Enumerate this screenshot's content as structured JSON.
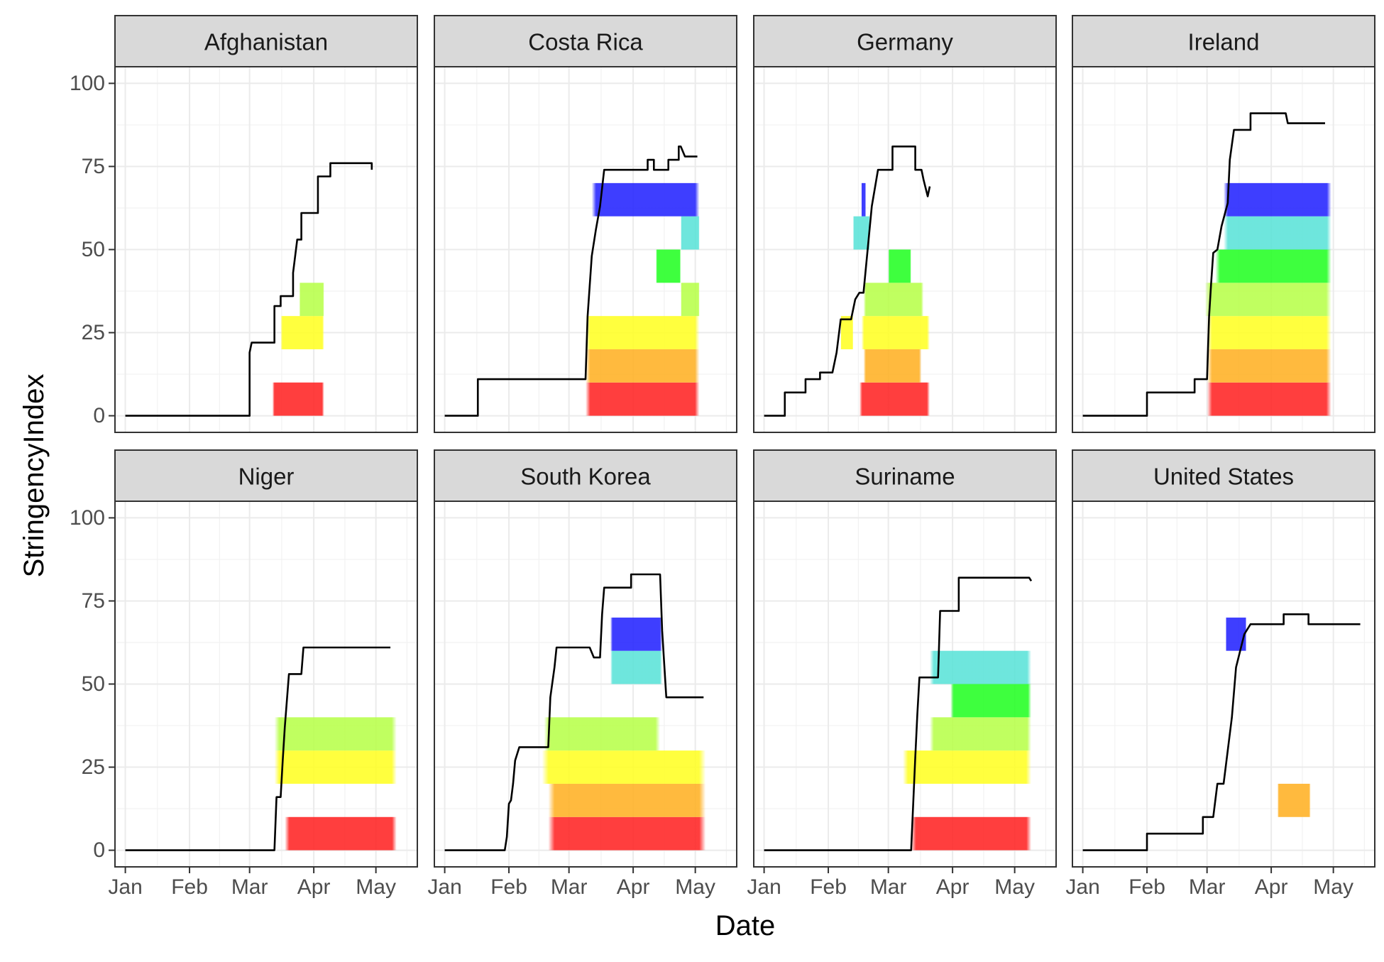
{
  "chart_data": {
    "type": "line",
    "layout": "facet-grid",
    "x_label": "Date",
    "y_label": "StringencyIndex",
    "x_ticks": [
      "Jan",
      "Feb",
      "Mar",
      "Apr",
      "May"
    ],
    "x_tick_dates": [
      "2020-01-01",
      "2020-02-01",
      "2020-03-01",
      "2020-04-01",
      "2020-05-01"
    ],
    "x_range": [
      "2019-12-27",
      "2020-05-21"
    ],
    "y_ticks": [
      0,
      25,
      50,
      75,
      100
    ],
    "y_range": [
      -5,
      105
    ],
    "grid": true,
    "band_height": 10,
    "band_colors": [
      "#ff2424",
      "#ffb124",
      "#ffff24",
      "#b8ff4a",
      "#24ff24",
      "#5ae3d8",
      "#2424ff"
    ],
    "panels": [
      {
        "country": "Afghanistan",
        "line": [
          [
            "2020-01-01",
            0
          ],
          [
            "2020-02-01",
            0
          ],
          [
            "2020-03-01",
            0
          ],
          [
            "2020-03-01",
            19
          ],
          [
            "2020-03-02",
            22
          ],
          [
            "2020-03-13",
            22
          ],
          [
            "2020-03-13",
            33
          ],
          [
            "2020-03-16",
            33
          ],
          [
            "2020-03-16",
            36
          ],
          [
            "2020-03-22",
            36
          ],
          [
            "2020-03-22",
            43
          ],
          [
            "2020-03-24",
            53
          ],
          [
            "2020-03-26",
            53
          ],
          [
            "2020-03-26",
            61
          ],
          [
            "2020-04-03",
            61
          ],
          [
            "2020-04-03",
            72
          ],
          [
            "2020-04-09",
            72
          ],
          [
            "2020-04-09",
            76
          ],
          [
            "2020-04-29",
            76
          ],
          [
            "2020-04-29",
            74
          ]
        ],
        "bands": [
          {
            "level": 0,
            "start": "2020-03-12",
            "end": "2020-04-06"
          },
          {
            "level": 2,
            "start": "2020-03-16",
            "end": "2020-04-06"
          },
          {
            "level": 3,
            "start": "2020-03-25",
            "end": "2020-04-06"
          }
        ]
      },
      {
        "country": "Costa Rica",
        "line": [
          [
            "2020-01-01",
            0
          ],
          [
            "2020-01-17",
            0
          ],
          [
            "2020-01-17",
            11
          ],
          [
            "2020-03-09",
            11
          ],
          [
            "2020-03-10",
            30
          ],
          [
            "2020-03-12",
            48
          ],
          [
            "2020-03-14",
            56
          ],
          [
            "2020-03-16",
            63
          ],
          [
            "2020-03-18",
            74
          ],
          [
            "2020-04-08",
            74
          ],
          [
            "2020-04-08",
            77
          ],
          [
            "2020-04-11",
            77
          ],
          [
            "2020-04-11",
            74
          ],
          [
            "2020-04-18",
            74
          ],
          [
            "2020-04-18",
            77
          ],
          [
            "2020-04-23",
            77
          ],
          [
            "2020-04-23",
            81
          ],
          [
            "2020-04-24",
            81
          ],
          [
            "2020-04-26",
            78
          ],
          [
            "2020-05-02",
            78
          ]
        ],
        "bands": [
          {
            "level": 0,
            "start": "2020-03-09",
            "end": "2020-05-03"
          },
          {
            "level": 1,
            "start": "2020-03-09",
            "end": "2020-05-03"
          },
          {
            "level": 2,
            "start": "2020-03-09",
            "end": "2020-05-03"
          },
          {
            "level": 3,
            "start": "2020-04-24",
            "end": "2020-05-03"
          },
          {
            "level": 4,
            "start": "2020-04-12",
            "end": "2020-04-24"
          },
          {
            "level": 5,
            "start": "2020-04-24",
            "end": "2020-05-03"
          },
          {
            "level": 6,
            "start": "2020-03-12",
            "end": "2020-05-03"
          }
        ]
      },
      {
        "country": "Germany",
        "line": [
          [
            "2020-01-01",
            0
          ],
          [
            "2020-01-11",
            0
          ],
          [
            "2020-01-11",
            7
          ],
          [
            "2020-01-21",
            7
          ],
          [
            "2020-01-21",
            11
          ],
          [
            "2020-01-28",
            11
          ],
          [
            "2020-01-28",
            13
          ],
          [
            "2020-02-03",
            13
          ],
          [
            "2020-02-05",
            19
          ],
          [
            "2020-02-07",
            29
          ],
          [
            "2020-02-12",
            29
          ],
          [
            "2020-02-14",
            35
          ],
          [
            "2020-02-16",
            37
          ],
          [
            "2020-02-18",
            37
          ],
          [
            "2020-02-20",
            50
          ],
          [
            "2020-02-22",
            63
          ],
          [
            "2020-02-25",
            74
          ],
          [
            "2020-03-03",
            74
          ],
          [
            "2020-03-03",
            81
          ],
          [
            "2020-03-14",
            81
          ],
          [
            "2020-03-14",
            74
          ],
          [
            "2020-03-17",
            74
          ],
          [
            "2020-03-18",
            71
          ],
          [
            "2020-03-20",
            66
          ],
          [
            "2020-03-21",
            69
          ]
        ],
        "bands": [
          {
            "level": 0,
            "start": "2020-02-16",
            "end": "2020-03-21"
          },
          {
            "level": 1,
            "start": "2020-02-18",
            "end": "2020-03-17"
          },
          {
            "level": 2,
            "start": "2020-02-07",
            "end": "2020-02-13"
          },
          {
            "level": 2,
            "start": "2020-02-17",
            "end": "2020-03-21"
          },
          {
            "level": 3,
            "start": "2020-02-18",
            "end": "2020-03-18"
          },
          {
            "level": 4,
            "start": "2020-03-01",
            "end": "2020-03-12"
          },
          {
            "level": 5,
            "start": "2020-02-13",
            "end": "2020-02-21"
          },
          {
            "level": 6,
            "start": "2020-02-17",
            "end": "2020-02-19"
          }
        ]
      },
      {
        "country": "Ireland",
        "line": [
          [
            "2020-01-01",
            0
          ],
          [
            "2020-02-01",
            0
          ],
          [
            "2020-02-01",
            7
          ],
          [
            "2020-02-24",
            7
          ],
          [
            "2020-02-24",
            11
          ],
          [
            "2020-03-01",
            11
          ],
          [
            "2020-03-02",
            30
          ],
          [
            "2020-03-03",
            40
          ],
          [
            "2020-03-04",
            49
          ],
          [
            "2020-03-06",
            50
          ],
          [
            "2020-03-08",
            57
          ],
          [
            "2020-03-11",
            64
          ],
          [
            "2020-03-12",
            77
          ],
          [
            "2020-03-14",
            86
          ],
          [
            "2020-03-22",
            86
          ],
          [
            "2020-03-22",
            91
          ],
          [
            "2020-04-08",
            91
          ],
          [
            "2020-04-09",
            88
          ],
          [
            "2020-04-27",
            88
          ]
        ],
        "bands": [
          {
            "level": 0,
            "start": "2020-03-01",
            "end": "2020-04-30"
          },
          {
            "level": 1,
            "start": "2020-03-01",
            "end": "2020-04-30"
          },
          {
            "level": 2,
            "start": "2020-03-01",
            "end": "2020-04-30"
          },
          {
            "level": 3,
            "start": "2020-02-29",
            "end": "2020-04-30"
          },
          {
            "level": 4,
            "start": "2020-03-05",
            "end": "2020-04-30"
          },
          {
            "level": 5,
            "start": "2020-03-09",
            "end": "2020-04-30"
          },
          {
            "level": 6,
            "start": "2020-03-09",
            "end": "2020-04-30"
          }
        ]
      },
      {
        "country": "Niger",
        "line": [
          [
            "2020-01-01",
            0
          ],
          [
            "2020-02-01",
            0
          ],
          [
            "2020-03-01",
            0
          ],
          [
            "2020-03-13",
            0
          ],
          [
            "2020-03-14",
            16
          ],
          [
            "2020-03-16",
            16
          ],
          [
            "2020-03-17",
            27
          ],
          [
            "2020-03-18",
            37
          ],
          [
            "2020-03-20",
            53
          ],
          [
            "2020-03-26",
            53
          ],
          [
            "2020-03-27",
            61
          ],
          [
            "2020-05-08",
            61
          ]
        ],
        "bands": [
          {
            "level": 0,
            "start": "2020-03-18",
            "end": "2020-05-11"
          },
          {
            "level": 2,
            "start": "2020-03-13",
            "end": "2020-05-11"
          },
          {
            "level": 3,
            "start": "2020-03-13",
            "end": "2020-05-11"
          }
        ]
      },
      {
        "country": "South Korea",
        "line": [
          [
            "2020-01-01",
            0
          ],
          [
            "2020-01-30",
            0
          ],
          [
            "2020-01-31",
            4
          ],
          [
            "2020-02-01",
            14
          ],
          [
            "2020-02-02",
            15
          ],
          [
            "2020-02-03",
            20
          ],
          [
            "2020-02-04",
            27
          ],
          [
            "2020-02-06",
            31
          ],
          [
            "2020-02-20",
            31
          ],
          [
            "2020-02-21",
            46
          ],
          [
            "2020-02-23",
            55
          ],
          [
            "2020-02-24",
            61
          ],
          [
            "2020-03-11",
            61
          ],
          [
            "2020-03-13",
            58
          ],
          [
            "2020-03-16",
            58
          ],
          [
            "2020-03-17",
            71
          ],
          [
            "2020-03-18",
            79
          ],
          [
            "2020-03-31",
            79
          ],
          [
            "2020-03-31",
            83
          ],
          [
            "2020-04-14",
            83
          ],
          [
            "2020-04-15",
            66
          ],
          [
            "2020-04-17",
            46
          ],
          [
            "2020-05-05",
            46
          ]
        ],
        "bands": [
          {
            "level": 0,
            "start": "2020-02-20",
            "end": "2020-05-06"
          },
          {
            "level": 1,
            "start": "2020-02-20",
            "end": "2020-05-06"
          },
          {
            "level": 2,
            "start": "2020-02-17",
            "end": "2020-05-06"
          },
          {
            "level": 3,
            "start": "2020-02-18",
            "end": "2020-04-14"
          },
          {
            "level": 5,
            "start": "2020-03-21",
            "end": "2020-04-15"
          },
          {
            "level": 6,
            "start": "2020-03-21",
            "end": "2020-04-15"
          }
        ]
      },
      {
        "country": "Suriname",
        "line": [
          [
            "2020-01-01",
            0
          ],
          [
            "2020-02-01",
            0
          ],
          [
            "2020-03-01",
            0
          ],
          [
            "2020-03-12",
            0
          ],
          [
            "2020-03-13",
            14
          ],
          [
            "2020-03-14",
            28
          ],
          [
            "2020-03-15",
            41
          ],
          [
            "2020-03-16",
            52
          ],
          [
            "2020-03-25",
            52
          ],
          [
            "2020-03-26",
            72
          ],
          [
            "2020-04-04",
            72
          ],
          [
            "2020-04-04",
            82
          ],
          [
            "2020-05-08",
            82
          ],
          [
            "2020-05-09",
            81
          ]
        ],
        "bands": [
          {
            "level": 0,
            "start": "2020-03-12",
            "end": "2020-05-09"
          },
          {
            "level": 2,
            "start": "2020-03-08",
            "end": "2020-05-09"
          },
          {
            "level": 3,
            "start": "2020-03-21",
            "end": "2020-05-09"
          },
          {
            "level": 4,
            "start": "2020-03-31",
            "end": "2020-05-09"
          },
          {
            "level": 5,
            "start": "2020-03-21",
            "end": "2020-05-09"
          }
        ]
      },
      {
        "country": "United States",
        "line": [
          [
            "2020-01-01",
            0
          ],
          [
            "2020-02-01",
            0
          ],
          [
            "2020-02-01",
            5
          ],
          [
            "2020-02-28",
            5
          ],
          [
            "2020-02-28",
            10
          ],
          [
            "2020-03-04",
            10
          ],
          [
            "2020-03-06",
            20
          ],
          [
            "2020-03-09",
            20
          ],
          [
            "2020-03-11",
            30
          ],
          [
            "2020-03-13",
            40
          ],
          [
            "2020-03-15",
            55
          ],
          [
            "2020-03-17",
            60
          ],
          [
            "2020-03-19",
            65
          ],
          [
            "2020-03-22",
            68
          ],
          [
            "2020-04-07",
            68
          ],
          [
            "2020-04-07",
            71
          ],
          [
            "2020-04-19",
            71
          ],
          [
            "2020-04-19",
            68
          ],
          [
            "2020-05-14",
            68
          ]
        ],
        "bands": [
          {
            "level": 1,
            "start": "2020-04-04",
            "end": "2020-04-20"
          },
          {
            "level": 6,
            "start": "2020-03-10",
            "end": "2020-03-20"
          }
        ]
      }
    ]
  }
}
